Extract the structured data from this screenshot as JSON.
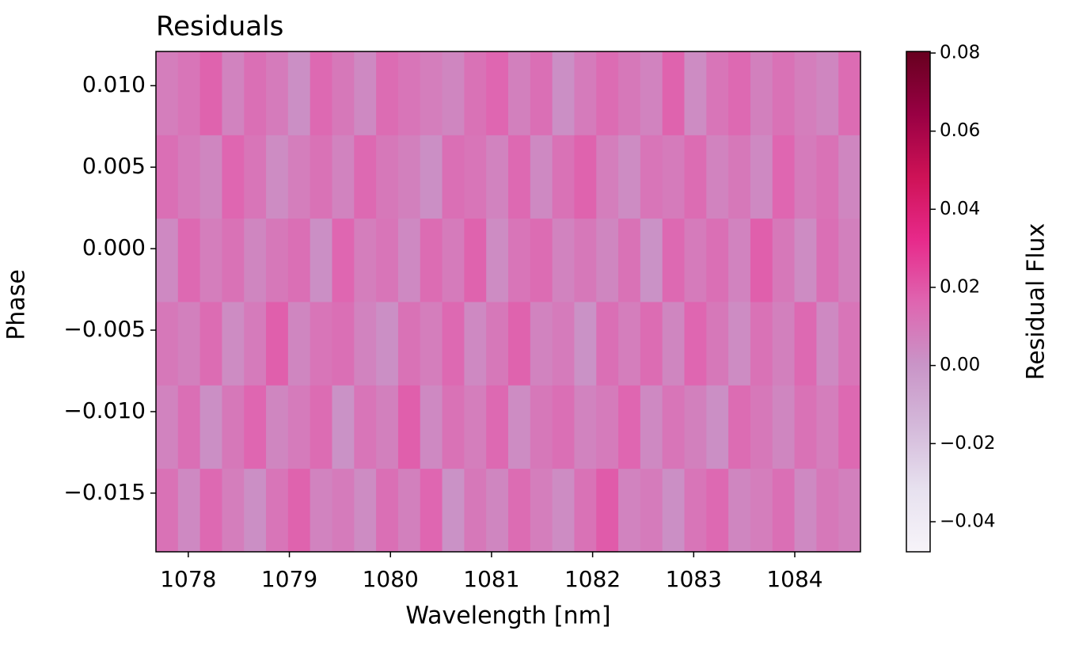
{
  "chart_data": {
    "type": "heatmap",
    "title": "Residuals",
    "x_label": "Wavelength [nm]",
    "y_label": "Phase",
    "xlim": [
      1077.68,
      1084.65
    ],
    "ylim": [
      -0.0186,
      0.0121
    ],
    "xticks": [
      1078,
      1079,
      1080,
      1081,
      1082,
      1083,
      1084
    ],
    "yticks": [
      {
        "value": 0.01,
        "label": "0.010"
      },
      0.005,
      {
        "value": 0,
        "label": "0.000"
      },
      {
        "value": -0.005,
        "label": "−0.005"
      },
      {
        "value": -0.01,
        "label": "−0.010"
      },
      {
        "value": -0.015,
        "label": "−0.015"
      }
    ],
    "colorbar": {
      "label": "Residual Flux",
      "clim": [
        -0.0477,
        0.0804
      ],
      "ticks": [
        0.08,
        0.06,
        0.04,
        0.02,
        {
          "value": 0,
          "label": "0.00"
        },
        {
          "value": -0.02,
          "label": "−0.02"
        },
        {
          "value": -0.04,
          "label": "−0.04"
        }
      ],
      "colormap": [
        "#f7f4f9",
        "#e7e1ef",
        "#d4b9da",
        "#c994c7",
        "#df65b0",
        "#e7298a",
        "#ce1256",
        "#980043",
        "#67001f"
      ]
    },
    "z": [
      [
        0.012,
        0.004,
        0.015,
        0.008,
        0.002,
        0.011,
        0.017,
        0.006,
        0.009,
        0.003,
        0.013,
        0.007,
        0.016,
        0.001,
        0.01,
        0.005,
        0.014,
        0.008,
        0.003,
        0.012,
        0.019,
        0.006,
        0.009,
        0.002,
        0.011,
        0.015,
        0.005,
        0.008,
        0.013,
        0.004,
        0.01,
        0.007
      ],
      [
        0.006,
        0.013,
        0.002,
        0.01,
        0.016,
        0.005,
        0.009,
        0.014,
        0.001,
        0.011,
        0.007,
        0.018,
        0.004,
        0.012,
        0.008,
        0.015,
        0.003,
        0.01,
        0.013,
        0.006,
        0.009,
        0.016,
        0.004,
        0.011,
        0.007,
        0.002,
        0.014,
        0.01,
        0.005,
        0.012,
        0.008,
        0.015
      ],
      [
        0.01,
        0.007,
        0.014,
        0.003,
        0.009,
        0.018,
        0.005,
        0.011,
        0.013,
        0.006,
        0.002,
        0.012,
        0.008,
        0.015,
        0.004,
        0.01,
        0.017,
        0.006,
        0.009,
        0.001,
        0.013,
        0.008,
        0.014,
        0.005,
        0.016,
        0.01,
        0.003,
        0.012,
        0.007,
        0.015,
        0.004,
        0.011
      ],
      [
        0.004,
        0.015,
        0.008,
        0.012,
        0.005,
        0.01,
        0.013,
        0.002,
        0.016,
        0.008,
        0.011,
        0.004,
        0.014,
        0.009,
        0.017,
        0.003,
        0.011,
        0.014,
        0.006,
        0.01,
        0.005,
        0.012,
        0.001,
        0.015,
        0.009,
        0.013,
        0.006,
        0.018,
        0.01,
        0.003,
        0.013,
        0.007
      ],
      [
        0.013,
        0.009,
        0.005,
        0.016,
        0.011,
        0.003,
        0.008,
        0.012,
        0.006,
        0.015,
        0.01,
        0.007,
        0.002,
        0.013,
        0.011,
        0.006,
        0.015,
        0.004,
        0.012,
        0.017,
        0.008,
        0.003,
        0.011,
        0.009,
        0.014,
        0.006,
        0.01,
        0.004,
        0.016,
        0.009,
        0.012,
        0.005
      ],
      [
        0.008,
        0.011,
        0.017,
        0.006,
        0.013,
        0.009,
        0.002,
        0.015,
        0.01,
        0.004,
        0.014,
        0.011,
        0.008,
        0.005,
        0.012,
        0.016,
        0.007,
        0.013,
        0.002,
        0.009,
        0.014,
        0.01,
        0.006,
        0.017,
        0.003,
        0.011,
        0.015,
        0.007,
        0.012,
        0.008,
        0.005,
        0.014
      ]
    ]
  }
}
